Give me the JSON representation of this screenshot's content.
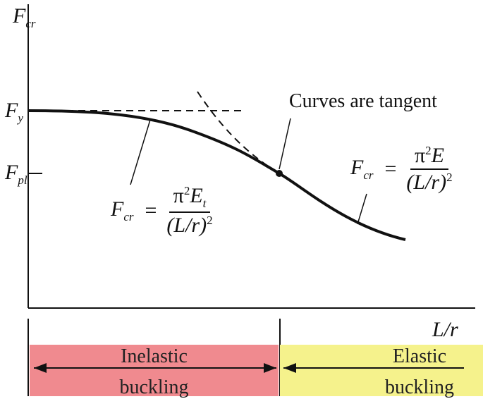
{
  "axes": {
    "y_label_main": "F",
    "y_label_sub": "cr",
    "x_label": "L/r",
    "fy_main": "F",
    "fy_sub": "y",
    "fpl_main": "F",
    "fpl_sub": "pl"
  },
  "annotation": {
    "tangent_text": "Curves are tangent"
  },
  "inelastic_eq": {
    "lhs_main": "F",
    "lhs_sub": "cr",
    "equals": "=",
    "num_main": "π",
    "num_sup": "2",
    "num_var": "E",
    "num_sub": "t",
    "den_text": "(L/r)",
    "den_sup": "2"
  },
  "elastic_eq": {
    "lhs_main": "F",
    "lhs_sub": "cr",
    "equals": "=",
    "num_main": "π",
    "num_sup": "2",
    "num_var": "E",
    "den_text": "(L/r)",
    "den_sup": "2"
  },
  "regions": {
    "inelastic_line1": "Inelastic",
    "inelastic_line2": "buckling",
    "elastic_line1": "Elastic",
    "elastic_line2": "buckling"
  },
  "colors": {
    "inelastic_band": "#f08a8f",
    "elastic_band": "#f5f28c",
    "line": "#111111"
  }
}
